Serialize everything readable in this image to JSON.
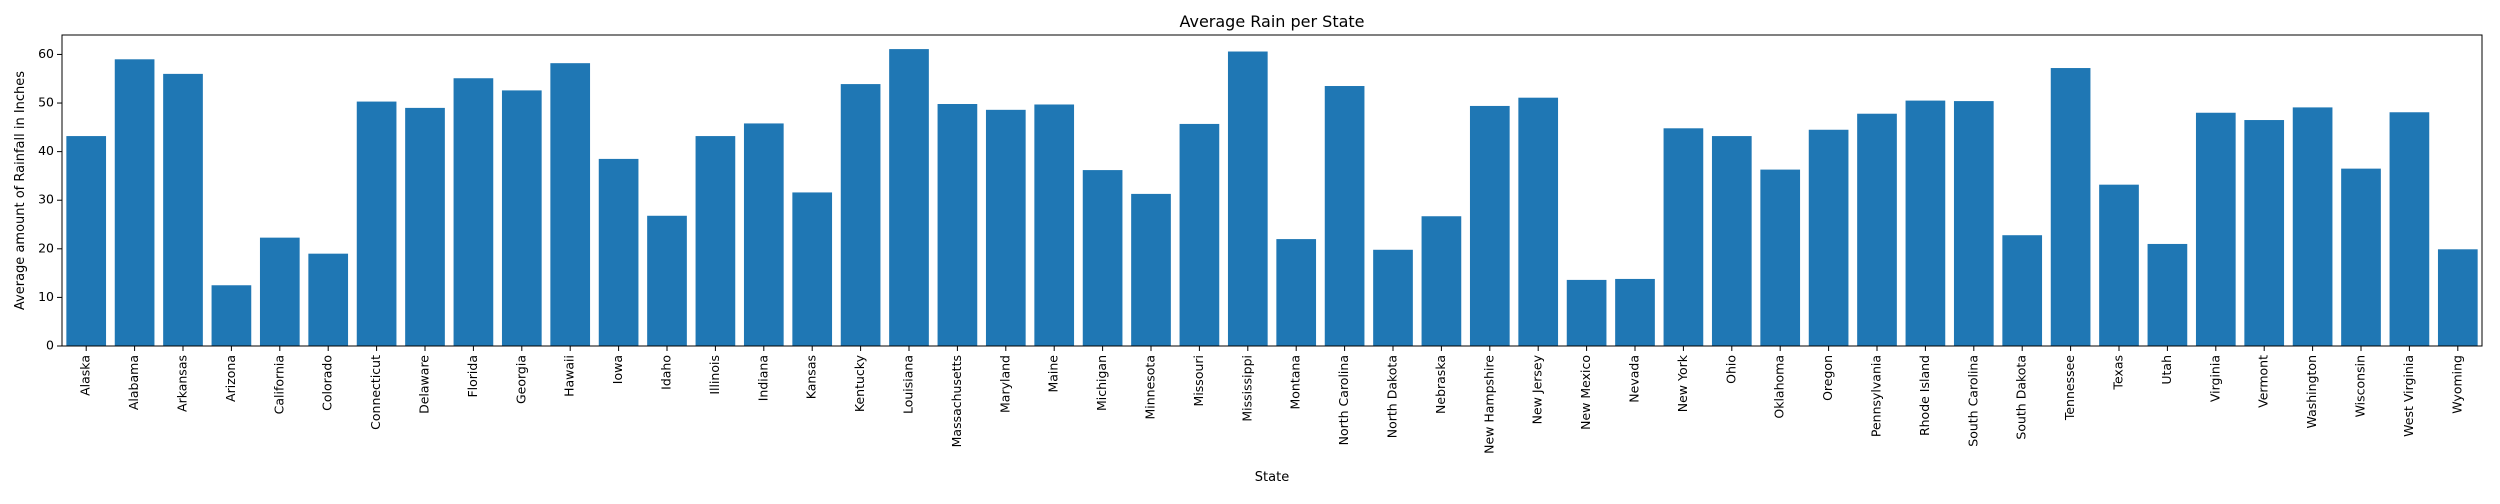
{
  "chart_data": {
    "type": "bar",
    "title": "Average Rain per State",
    "xlabel": "State",
    "ylabel": "Average amount of Rainfall in Inches",
    "ylim": [
      0,
      64
    ],
    "yticks": [
      0,
      10,
      20,
      30,
      40,
      50,
      60
    ],
    "grid": false,
    "legend": "none",
    "bar_color": "#1f77b4",
    "categories": [
      "Alaska",
      "Alabama",
      "Arkansas",
      "Arizona",
      "California",
      "Colorado",
      "Connecticut",
      "Delaware",
      "Florida",
      "Georgia",
      "Hawaii",
      "Iowa",
      "Idaho",
      "Illinois",
      "Indiana",
      "Kansas",
      "Kentucky",
      "Louisiana",
      "Massachusetts",
      "Maryland",
      "Maine",
      "Michigan",
      "Minnesota",
      "Missouri",
      "Mississippi",
      "Montana",
      "North Carolina",
      "North Dakota",
      "Nebraska",
      "New Hampshire",
      "New Jersey",
      "New Mexico",
      "Nevada",
      "New York",
      "Ohio",
      "Oklahoma",
      "Oregon",
      "Pennsylvania",
      "Rhode Island",
      "South Carolina",
      "South Dakota",
      "Tennessee",
      "Texas",
      "Utah",
      "Virginia",
      "Vermont",
      "Washington",
      "Wisconsin",
      "West Virginia",
      "Wyoming"
    ],
    "values": [
      43.2,
      59.0,
      56.0,
      12.5,
      22.3,
      19.0,
      50.3,
      49.0,
      55.1,
      52.6,
      58.2,
      38.5,
      26.8,
      43.2,
      45.8,
      31.6,
      53.9,
      61.1,
      49.8,
      48.6,
      49.7,
      36.2,
      31.3,
      45.7,
      60.6,
      22.0,
      53.5,
      19.8,
      26.7,
      49.4,
      51.1,
      13.6,
      13.8,
      44.8,
      43.2,
      36.3,
      44.5,
      47.8,
      50.5,
      50.4,
      22.8,
      57.2,
      33.2,
      21.0,
      48.0,
      46.5,
      49.1,
      36.5,
      48.1,
      19.9
    ]
  }
}
